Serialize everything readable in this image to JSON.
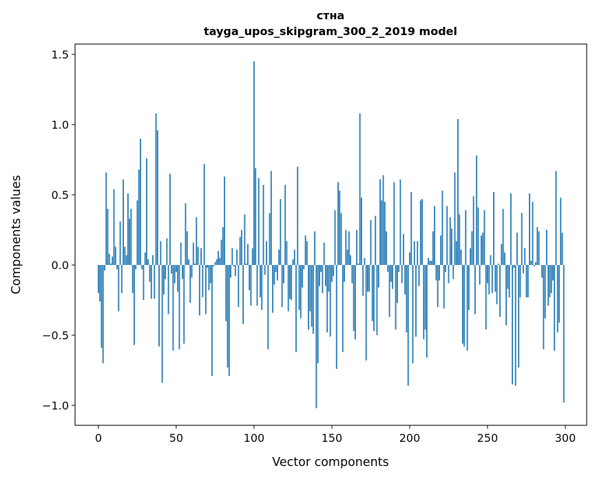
{
  "chart_data": {
    "type": "bar",
    "title": "стна",
    "subtitle": "tayga_upos_skipgram_300_2_2019 model",
    "xlabel": "Vector components",
    "ylabel": "Components values",
    "xlim": [
      -15,
      313.7
    ],
    "ylim": [
      -1.142,
      1.574
    ],
    "xticks": [
      0,
      50,
      100,
      150,
      200,
      250,
      300
    ],
    "xtick_labels": [
      "0",
      "50",
      "100",
      "150",
      "200",
      "250",
      "300"
    ],
    "yticks": [
      -1.0,
      -0.5,
      0.0,
      0.5,
      1.0,
      1.5
    ],
    "ytick_labels": [
      "−1.0",
      "−0.5",
      "0.0",
      "0.5",
      "1.0",
      "1.5"
    ],
    "grid": false,
    "bar_color": "#1f77b4",
    "values": [
      -0.2,
      -0.26,
      -0.59,
      -0.7,
      -0.04,
      0.66,
      0.4,
      0.08,
      0.01,
      0.06,
      0.54,
      0.13,
      -0.03,
      -0.33,
      0.31,
      -0.2,
      0.61,
      0.13,
      0.07,
      0.51,
      0.33,
      0.4,
      -0.2,
      -0.57,
      -0.03,
      0.46,
      0.68,
      0.9,
      -0.03,
      -0.25,
      0.09,
      0.76,
      0.04,
      -0.12,
      -0.24,
      0.07,
      -0.24,
      1.08,
      0.96,
      -0.58,
      0.17,
      -0.84,
      -0.21,
      -0.1,
      0.19,
      -0.35,
      0.65,
      -0.06,
      -0.61,
      -0.13,
      -0.05,
      -0.19,
      -0.6,
      0.16,
      -0.1,
      -0.56,
      0.44,
      0.24,
      0.04,
      -0.27,
      -0.09,
      0.16,
      0.01,
      0.34,
      0.13,
      -0.36,
      0.12,
      -0.23,
      0.72,
      -0.35,
      -0.02,
      -0.18,
      -0.13,
      -0.79,
      -0.01,
      0.02,
      0.04,
      0.1,
      0.05,
      0.18,
      0.27,
      0.63,
      -0.4,
      -0.73,
      -0.79,
      -0.09,
      0.12,
      -0.01,
      -0.08,
      0.11,
      -0.3,
      0.2,
      0.25,
      -0.42,
      0.36,
      0.01,
      0.15,
      -0.18,
      -0.29,
      0.12,
      1.45,
      0.69,
      -0.29,
      0.62,
      -0.23,
      -0.32,
      0.57,
      -0.07,
      0.17,
      -0.6,
      0.37,
      0.67,
      -0.34,
      -0.14,
      -0.05,
      -0.11,
      0.11,
      0.47,
      -0.3,
      -0.13,
      0.57,
      0.17,
      -0.33,
      -0.24,
      -0.25,
      0.04,
      0.11,
      -0.62,
      0.7,
      -0.32,
      -0.38,
      -0.16,
      -0.03,
      0.21,
      0.17,
      -0.46,
      -0.33,
      -0.44,
      -0.49,
      0.24,
      -1.02,
      -0.7,
      -0.15,
      -0.05,
      -0.2,
      0.16,
      -0.15,
      -0.48,
      -0.19,
      -0.51,
      -0.12,
      -0.08,
      0.39,
      -0.74,
      0.59,
      0.53,
      0.37,
      -0.62,
      -0.12,
      0.25,
      0.11,
      0.24,
      0.07,
      -0.13,
      -0.47,
      -0.53,
      0.25,
      0.01,
      1.08,
      0.48,
      -0.22,
      0.05,
      -0.68,
      -0.19,
      -0.19,
      0.32,
      -0.4,
      -0.47,
      0.35,
      -0.5,
      -0.16,
      0.61,
      0.46,
      0.64,
      0.45,
      0.24,
      -0.05,
      -0.37,
      -0.12,
      -0.17,
      0.59,
      -0.46,
      -0.27,
      -0.05,
      0.61,
      -0.13,
      0.22,
      -0.21,
      -0.48,
      -0.86,
      0.09,
      0.52,
      -0.7,
      0.17,
      -0.51,
      0.17,
      -0.15,
      0.46,
      0.47,
      -0.53,
      -0.46,
      -0.66,
      0.05,
      0.03,
      0.03,
      0.24,
      0.42,
      -0.11,
      -0.3,
      -0.11,
      0.21,
      0.53,
      -0.31,
      -0.05,
      0.42,
      -0.13,
      0.34,
      0.26,
      -0.1,
      0.66,
      0.17,
      1.04,
      0.36,
      0.11,
      -0.56,
      -0.58,
      0.39,
      -0.61,
      -0.32,
      0.12,
      0.24,
      0.49,
      -0.35,
      0.78,
      0.41,
      -0.14,
      0.21,
      0.23,
      0.39,
      -0.46,
      -0.13,
      -0.21,
      0.07,
      -0.2,
      0.52,
      -0.19,
      -0.28,
      0.01,
      -0.37,
      0.15,
      0.4,
      0.09,
      -0.43,
      -0.17,
      -0.23,
      0.51,
      -0.85,
      -0.02,
      -0.86,
      0.23,
      -0.73,
      -0.23,
      0.37,
      -0.06,
      0.12,
      -0.23,
      -0.23,
      0.51,
      0.03,
      0.45,
      -0.01,
      0.02,
      0.27,
      0.24,
      0.0,
      -0.09,
      -0.6,
      -0.38,
      0.25,
      -0.29,
      -0.23,
      -0.2,
      -0.11,
      -0.61,
      0.67,
      -0.48,
      -0.41,
      0.48,
      0.23,
      -0.98
    ]
  }
}
